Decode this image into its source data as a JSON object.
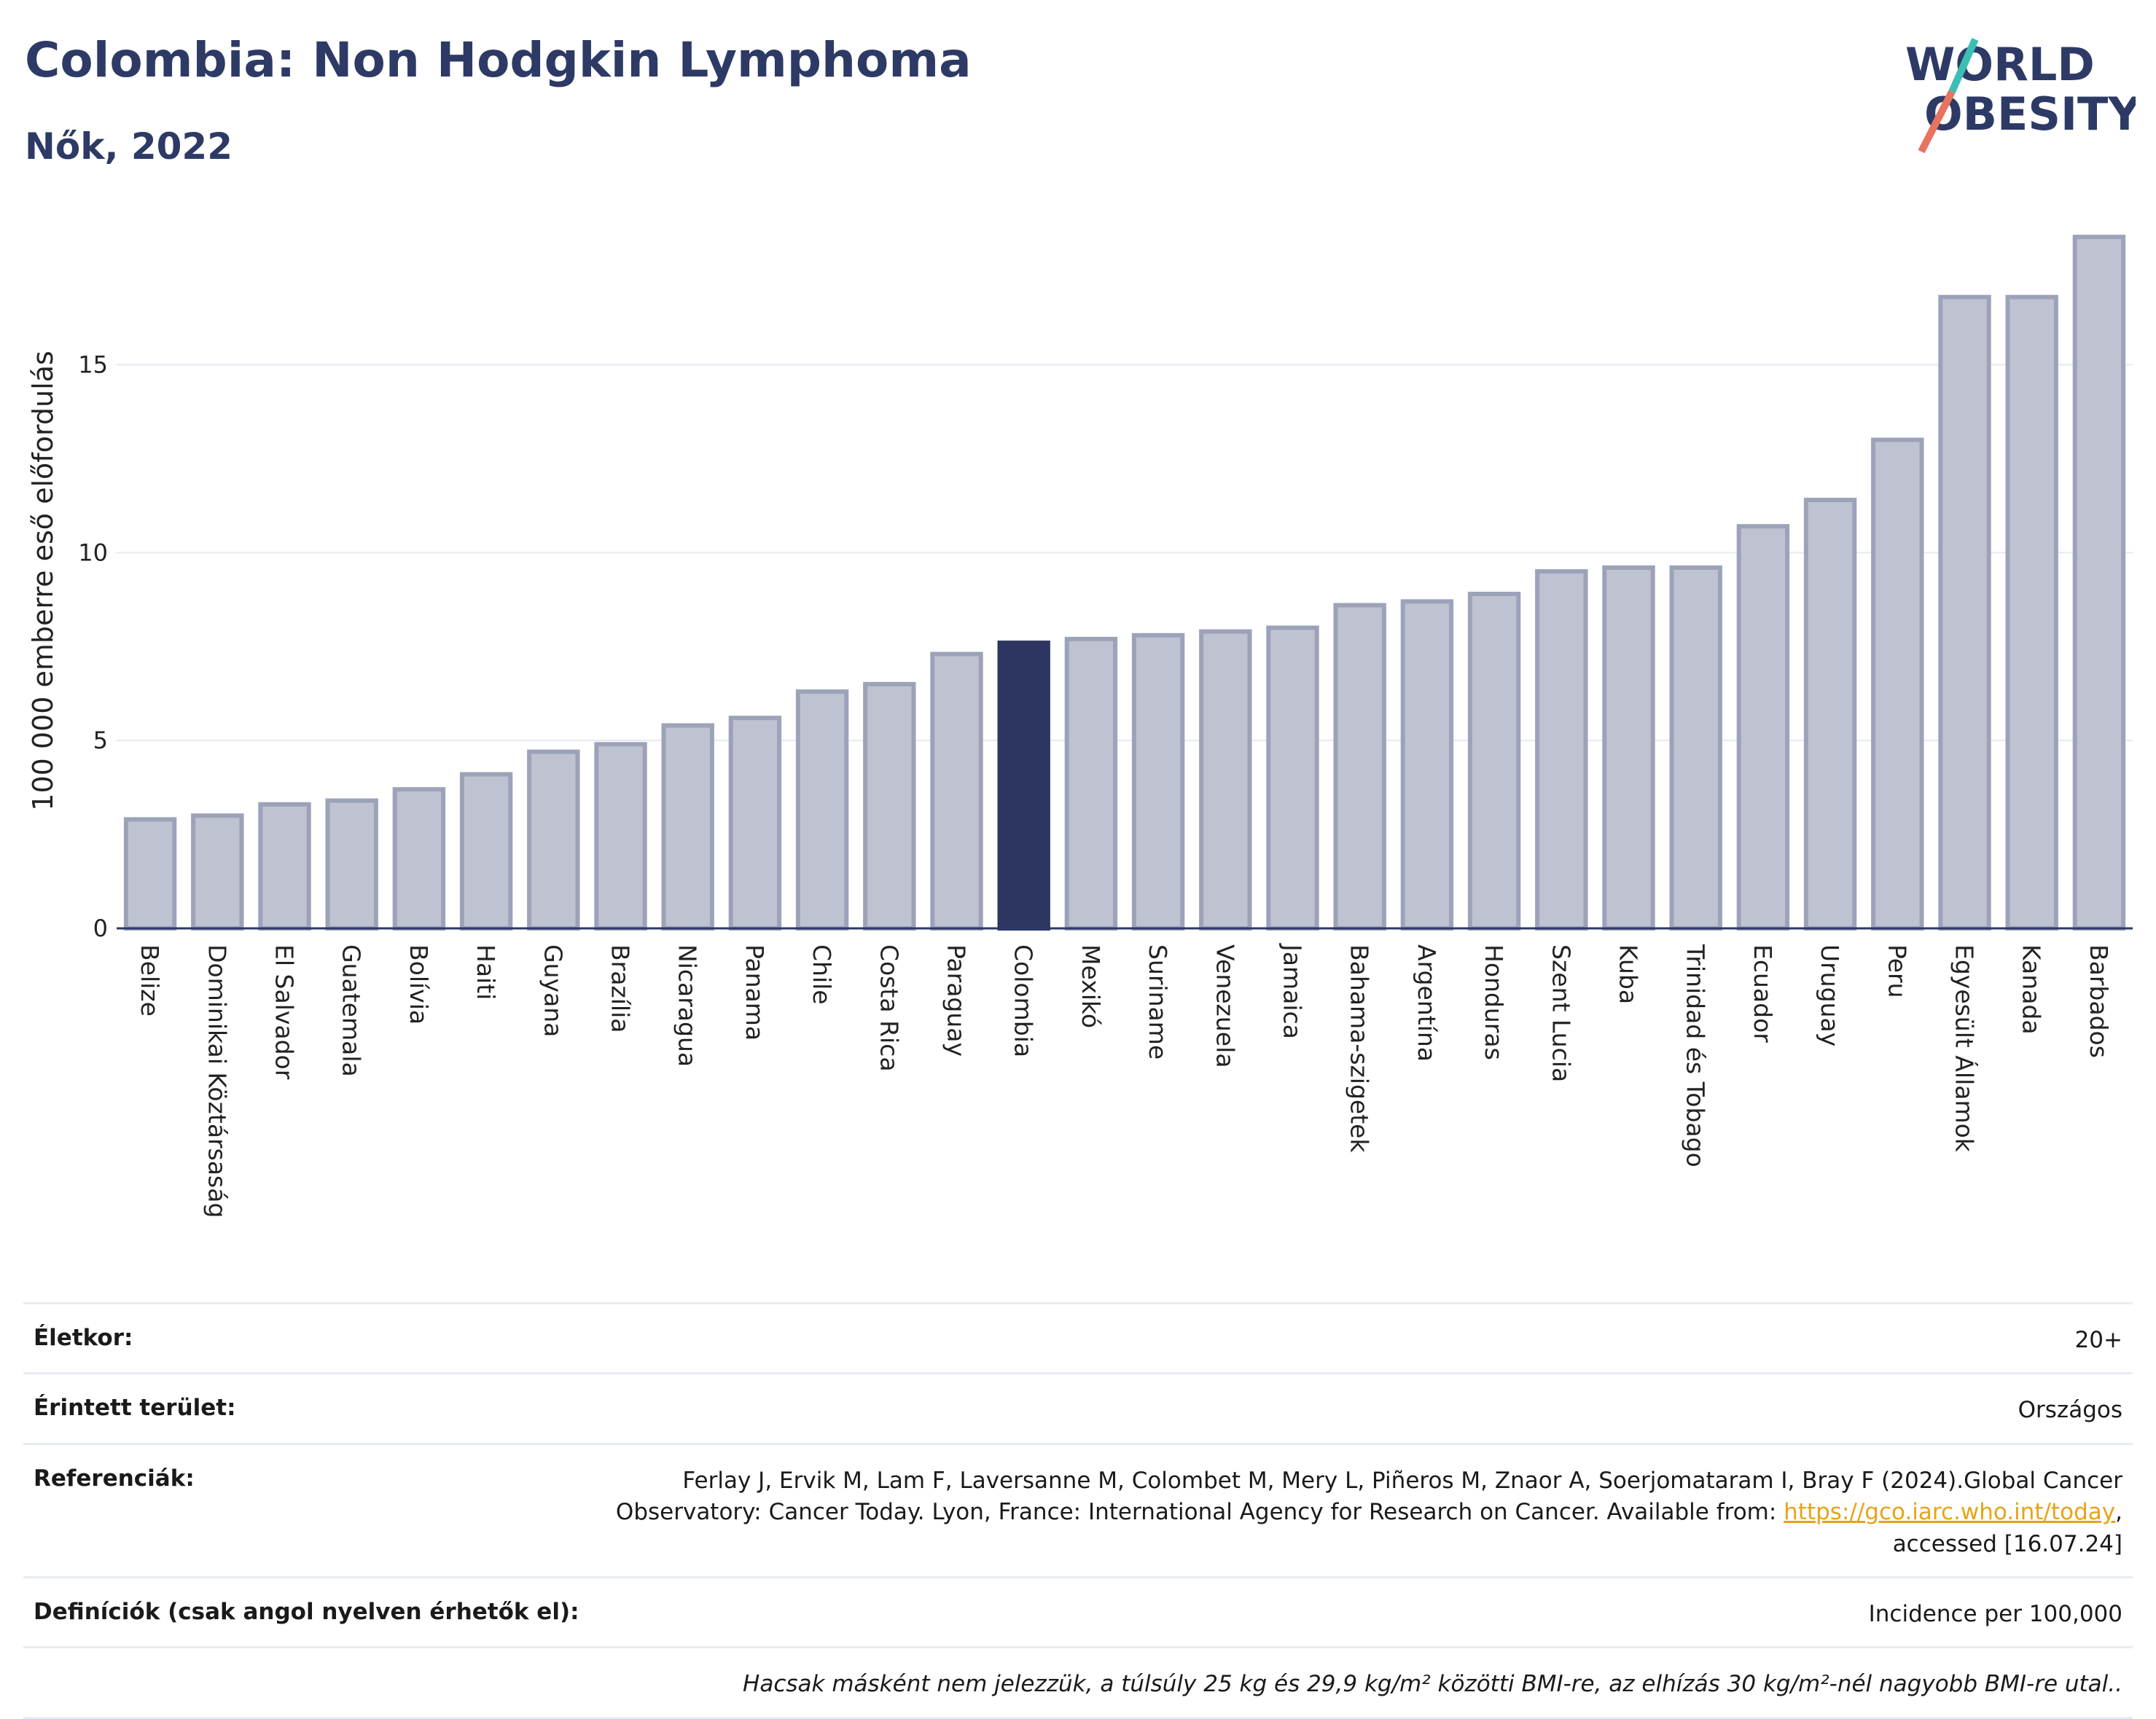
{
  "header": {
    "title": "Colombia: Non Hodgkin Lymphoma",
    "subtitle": "Nők, 2022",
    "logo_line1": "WORLD",
    "logo_line2": "OBESITY"
  },
  "colors": {
    "title": "#2d3a66",
    "bar_default": "#bfc3d1",
    "bar_stroke": "#9ca2b8",
    "bar_highlight": "#2d3660",
    "logo_teal": "#3bbfb5",
    "logo_coral": "#e8735f",
    "link": "#e8a317"
  },
  "chart_data": {
    "type": "bar",
    "ylabel": "100 000 emberre eső előfordulás",
    "xlabel": "",
    "ylim": [
      0,
      18.5
    ],
    "yticks": [
      0,
      5,
      10,
      15
    ],
    "highlight": "Colombia",
    "grid": true,
    "categories": [
      "Belize",
      "Dominikai Köztársaság",
      "El Salvador",
      "Guatemala",
      "Bolívia",
      "Haiti",
      "Guyana",
      "Brazília",
      "Nicaragua",
      "Panama",
      "Chile",
      "Costa Rica",
      "Paraguay",
      "Colombia",
      "Mexikó",
      "Suriname",
      "Venezuela",
      "Jamaica",
      "Bahama-szigetek",
      "Argentína",
      "Honduras",
      "Szent Lucia",
      "Kuba",
      "Trinidad és Tobago",
      "Ecuador",
      "Uruguay",
      "Peru",
      "Egyesült Államok",
      "Kanada",
      "Barbados"
    ],
    "values": [
      2.9,
      3.0,
      3.3,
      3.4,
      3.7,
      4.1,
      4.7,
      4.9,
      5.4,
      5.6,
      6.3,
      6.5,
      7.3,
      7.6,
      7.7,
      7.8,
      7.9,
      8.0,
      8.6,
      8.7,
      8.9,
      9.5,
      9.6,
      9.6,
      10.7,
      11.4,
      13.0,
      16.8,
      16.8,
      18.4
    ]
  },
  "info": {
    "age_label": "Életkor:",
    "age_value": "20+",
    "area_label": "Érintett terület:",
    "area_value": "Országos",
    "ref_label": "Referenciák:",
    "ref_text1": "Ferlay J, Ervik M, Lam F, Laversanne M, Colombet M, Mery L, Piñeros M, Znaor A, Soerjomataram I, Bray F (2024).Global Cancer Observatory: Cancer Today. Lyon, France: International Agency for Research on Cancer. Available from: ",
    "ref_link": "https://gco.iarc.who.int/today",
    "ref_text2": ", accessed [16.07.24]",
    "def_label": "Definíciók (csak angol nyelven érhetők el):",
    "def_value": "Incidence per 100,000",
    "note": "Hacsak másként nem jelezzük, a túlsúly 25 kg és 29,9 kg/m² közötti BMI-re, az elhízás 30 kg/m²-nél nagyobb BMI-re utal.."
  }
}
